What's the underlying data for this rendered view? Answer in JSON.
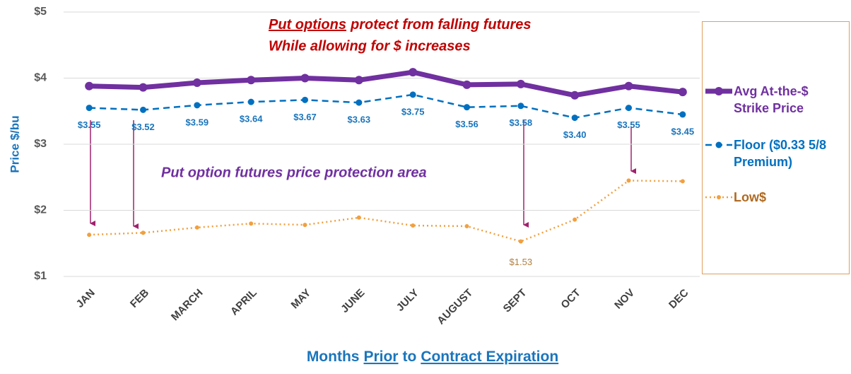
{
  "chart_data": {
    "type": "line",
    "y_label": "Price $/bu",
    "x_label_parts": [
      "Months",
      "Prior",
      "to",
      "Contract Expiration"
    ],
    "annotations": [
      "Put options",
      "protect from falling futures",
      "While allowing for $ increases",
      "Put option futures price protection area"
    ],
    "categories": [
      "JAN",
      "FEB",
      "MARCH",
      "APRIL",
      "MAY",
      "JUNE",
      "JULY",
      "AUGUST",
      "SEPT",
      "OCT",
      "NOV",
      "DEC"
    ],
    "series": [
      {
        "name": "Avg At-the-$ Strike Price",
        "color": "#7030a0",
        "style": "solid",
        "values": [
          3.88,
          3.86,
          3.93,
          3.97,
          4.0,
          3.97,
          4.09,
          3.9,
          3.91,
          3.74,
          3.88,
          3.79
        ]
      },
      {
        "name": "Floor ($0.33 5/8 Premium)",
        "color": "#0070c0",
        "style": "dashed",
        "values": [
          3.55,
          3.52,
          3.59,
          3.64,
          3.67,
          3.63,
          3.75,
          3.56,
          3.58,
          3.4,
          3.55,
          3.45
        ],
        "value_labels": [
          "$3.55",
          "$3.52",
          "$3.59",
          "$3.64",
          "$3.67",
          "$3.63",
          "$3.75",
          "$3.56",
          "$3.58",
          "$3.40",
          "$3.55",
          "$3.45"
        ]
      },
      {
        "name": "Low$",
        "color": "#f0a040",
        "style": "dotted",
        "values": [
          1.63,
          1.66,
          1.74,
          1.8,
          1.78,
          1.89,
          1.77,
          1.76,
          1.53,
          1.86,
          2.45,
          2.44
        ],
        "value_labels": [
          null,
          null,
          null,
          null,
          null,
          null,
          null,
          null,
          "$1.53",
          null,
          null,
          null
        ]
      }
    ],
    "ylim": [
      1,
      5
    ],
    "yticks": [
      {
        "value": 1,
        "label": "$1"
      },
      {
        "value": 2,
        "label": "$2"
      },
      {
        "value": 3,
        "label": "$3"
      },
      {
        "value": 4,
        "label": "$4"
      },
      {
        "value": 5,
        "label": "$5"
      }
    ],
    "grid": true
  }
}
